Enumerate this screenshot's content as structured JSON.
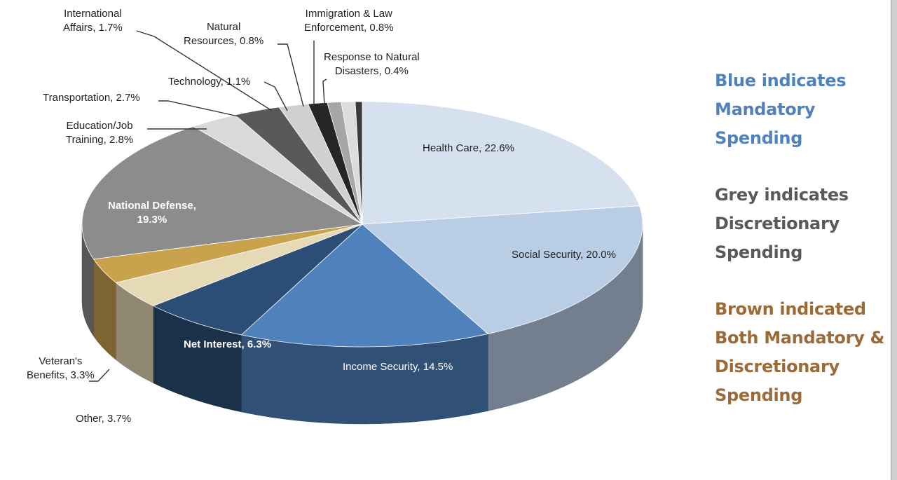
{
  "chart_data": {
    "type": "pie",
    "title": "",
    "slices": [
      {
        "label": "Health Care, 22.6%",
        "name": "Health Care",
        "value": 22.6,
        "color": "#d6e1f0",
        "category": "mandatory"
      },
      {
        "label": "Social Security, 20.0%",
        "name": "Social Security",
        "value": 20.0,
        "color": "#b9cde5",
        "category": "mandatory"
      },
      {
        "label": "Income Security, 14.5%",
        "name": "Income Security",
        "value": 14.5,
        "color": "#4f81bd",
        "category": "mandatory"
      },
      {
        "label": "Net Interest, 6.3%",
        "name": "Net Interest",
        "value": 6.3,
        "color": "#2c4d75",
        "category": "mandatory"
      },
      {
        "label": "Other, 3.7%",
        "name": "Other",
        "value": 3.7,
        "color": "#e6d9b5",
        "category": "both"
      },
      {
        "label": "Veteran's Benefits, 3.3%",
        "name": "Veteran's Benefits",
        "value": 3.3,
        "color": "#c9a24e",
        "category": "both"
      },
      {
        "label": "National Defense, 19.3%",
        "name": "National Defense",
        "value": 19.3,
        "color": "#8c8c8c",
        "category": "discretionary"
      },
      {
        "label": "Education/Job Training, 2.8%",
        "name": "Education/Job Training",
        "value": 2.8,
        "color": "#d9d9d9",
        "category": "discretionary"
      },
      {
        "label": "Transportation, 2.7%",
        "name": "Transportation",
        "value": 2.7,
        "color": "#595959",
        "category": "discretionary"
      },
      {
        "label": "International Affairs, 1.7%",
        "name": "International Affairs",
        "value": 1.7,
        "color": "#d0d0d0",
        "category": "discretionary"
      },
      {
        "label": "Technology, 1.1%",
        "name": "Technology",
        "value": 1.1,
        "color": "#262626",
        "category": "discretionary"
      },
      {
        "label": "Natural Resources, 0.8%",
        "name": "Natural Resources",
        "value": 0.8,
        "color": "#a6a6a6",
        "category": "discretionary"
      },
      {
        "label": "Immigration & Law Enforcement, 0.8%",
        "name": "Immigration & Law Enforcement",
        "value": 0.8,
        "color": "#dcdcdc",
        "category": "discretionary"
      },
      {
        "label": "Response to Natural Disasters, 0.4%",
        "name": "Response to Natural Disasters",
        "value": 0.4,
        "color": "#3a3a3a",
        "category": "discretionary"
      }
    ]
  },
  "labels": {
    "health_care": "Health Care, 22.6%",
    "social_security": "Social Security, 20.0%",
    "income_security": "Income Security, 14.5%",
    "net_interest": "Net Interest, 6.3%",
    "other": "Other, 3.7%",
    "veterans_1": "Veteran's",
    "veterans_2": "Benefits, 3.3%",
    "national_defense_1": "National Defense,",
    "national_defense_2": "19.3%",
    "education_1": "Education/Job",
    "education_2": "Training, 2.8%",
    "transportation": "Transportation, 2.7%",
    "international_1": "International",
    "international_2": "Affairs, 1.7%",
    "technology": "Technology, 1.1%",
    "natural_resources_1": "Natural",
    "natural_resources_2": "Resources, 0.8%",
    "immigration_1": "Immigration & Law",
    "immigration_2": "Enforcement, 0.8%",
    "disasters_1": "Response to Natural",
    "disasters_2": "Disasters, 0.4%"
  },
  "notes": {
    "blue": {
      "lines": [
        "Blue indicates",
        "Mandatory",
        "Spending"
      ],
      "color": "#4f81bd"
    },
    "grey": {
      "lines": [
        "Grey indicates",
        "Discretionary",
        "Spending"
      ],
      "color": "#595959"
    },
    "brown": {
      "lines": [
        "Brown indicated",
        "Both Mandatory &",
        "Discretionary",
        "Spending"
      ],
      "color": "#9c6a37"
    }
  }
}
